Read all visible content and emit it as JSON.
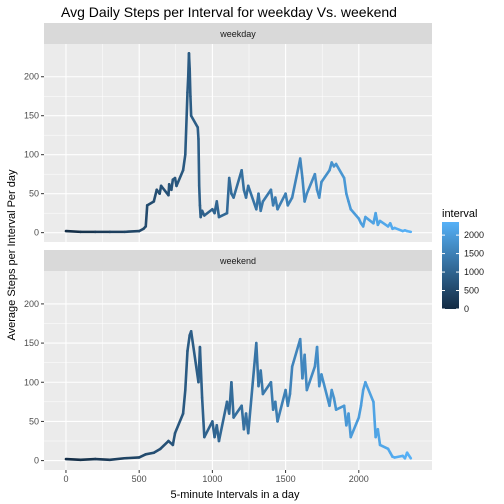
{
  "chart_data": {
    "type": "line",
    "title": "Avg Daily Steps per Interval for weekday Vs. weekend",
    "xlabel": "5-minute Intervals in a day",
    "ylabel": "Average Steps per Interval Per day",
    "xlim": [
      -150,
      2500
    ],
    "ylim": [
      -12,
      242
    ],
    "x_ticks": [
      0,
      500,
      1000,
      1500,
      2000
    ],
    "y_ticks": [
      0,
      50,
      100,
      150,
      200
    ],
    "grid": true,
    "legend": {
      "title": "interval",
      "placement": "right",
      "ticks": [
        0,
        500,
        1000,
        1500,
        2000
      ],
      "range": [
        0,
        2355
      ],
      "color_low": "#132B43",
      "color_high": "#56B1F7"
    },
    "panels": [
      {
        "name": "weekday",
        "x": [
          0,
          100,
          200,
          300,
          400,
          500,
          530,
          545,
          555,
          600,
          620,
          640,
          650,
          700,
          705,
          720,
          730,
          745,
          755,
          800,
          815,
          830,
          835,
          840,
          845,
          850,
          855,
          900,
          905,
          910,
          915,
          920,
          930,
          945,
          1000,
          1015,
          1030,
          1045,
          1100,
          1115,
          1130,
          1145,
          1200,
          1215,
          1230,
          1245,
          1300,
          1315,
          1330,
          1345,
          1400,
          1415,
          1430,
          1445,
          1500,
          1515,
          1530,
          1545,
          1600,
          1615,
          1630,
          1645,
          1700,
          1715,
          1730,
          1745,
          1800,
          1815,
          1830,
          1845,
          1900,
          1915,
          1930,
          1945,
          2000,
          2015,
          2030,
          2045,
          2100,
          2115,
          2130,
          2145,
          2200,
          2215,
          2230,
          2245,
          2300,
          2315,
          2330,
          2355
        ],
        "y": [
          2,
          1,
          1,
          1,
          1,
          2,
          5,
          8,
          35,
          40,
          55,
          50,
          60,
          48,
          62,
          55,
          68,
          70,
          60,
          80,
          100,
          180,
          200,
          230,
          210,
          175,
          150,
          135,
          120,
          60,
          35,
          20,
          28,
          22,
          30,
          25,
          40,
          20,
          25,
          70,
          50,
          45,
          80,
          55,
          45,
          60,
          30,
          50,
          28,
          40,
          55,
          35,
          45,
          30,
          50,
          35,
          40,
          45,
          95,
          70,
          40,
          50,
          75,
          55,
          45,
          65,
          80,
          90,
          85,
          88,
          70,
          50,
          40,
          30,
          18,
          12,
          8,
          20,
          12,
          25,
          10,
          15,
          8,
          12,
          5,
          6,
          2,
          3,
          2,
          1
        ]
      },
      {
        "name": "weekend",
        "x": [
          0,
          100,
          200,
          300,
          400,
          500,
          545,
          600,
          645,
          700,
          730,
          745,
          800,
          815,
          830,
          845,
          855,
          905,
          915,
          930,
          945,
          1000,
          1015,
          1030,
          1045,
          1100,
          1115,
          1130,
          1145,
          1200,
          1215,
          1230,
          1245,
          1300,
          1315,
          1330,
          1345,
          1400,
          1415,
          1430,
          1445,
          1500,
          1515,
          1530,
          1545,
          1600,
          1615,
          1630,
          1645,
          1700,
          1715,
          1730,
          1745,
          1800,
          1815,
          1830,
          1845,
          1900,
          1915,
          1930,
          1945,
          2000,
          2015,
          2030,
          2045,
          2100,
          2115,
          2130,
          2145,
          2200,
          2215,
          2230,
          2245,
          2300,
          2315,
          2330,
          2355
        ],
        "y": [
          2,
          1,
          2,
          1,
          3,
          4,
          8,
          10,
          15,
          25,
          20,
          35,
          60,
          90,
          140,
          160,
          165,
          100,
          145,
          80,
          30,
          50,
          30,
          45,
          25,
          75,
          60,
          100,
          55,
          70,
          40,
          60,
          35,
          150,
          95,
          115,
          85,
          100,
          65,
          75,
          50,
          90,
          70,
          85,
          120,
          155,
          105,
          135,
          90,
          120,
          145,
          95,
          110,
          70,
          90,
          80,
          65,
          70,
          45,
          60,
          30,
          55,
          70,
          90,
          100,
          75,
          30,
          40,
          20,
          15,
          10,
          5,
          4,
          6,
          3,
          10,
          3
        ]
      }
    ]
  }
}
